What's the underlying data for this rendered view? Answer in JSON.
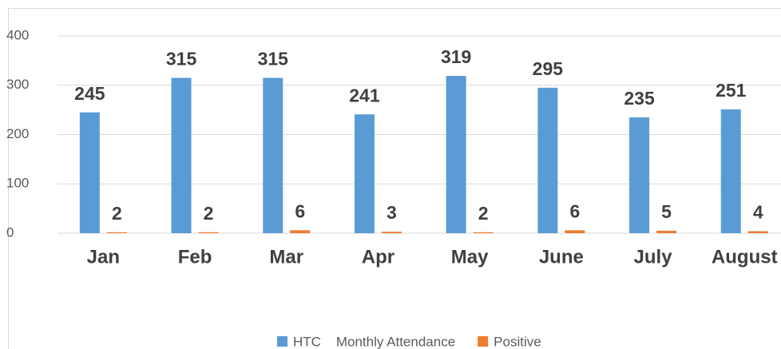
{
  "chart_data": {
    "type": "bar",
    "categories": [
      "Jan",
      "Feb",
      "Mar",
      "Apr",
      "May",
      "June",
      "July",
      "August"
    ],
    "series": [
      {
        "name": "HTC    Monthly Attendance",
        "color": "#5b9bd5",
        "values": [
          245,
          315,
          315,
          241,
          319,
          295,
          235,
          251
        ]
      },
      {
        "name": "Positive",
        "color": "#ed7d31",
        "values": [
          2,
          2,
          6,
          3,
          2,
          6,
          5,
          4
        ]
      }
    ],
    "ylim": [
      0,
      400
    ],
    "yticks": [
      0,
      100,
      200,
      300,
      400
    ],
    "grid": true,
    "legend": "bottom"
  }
}
